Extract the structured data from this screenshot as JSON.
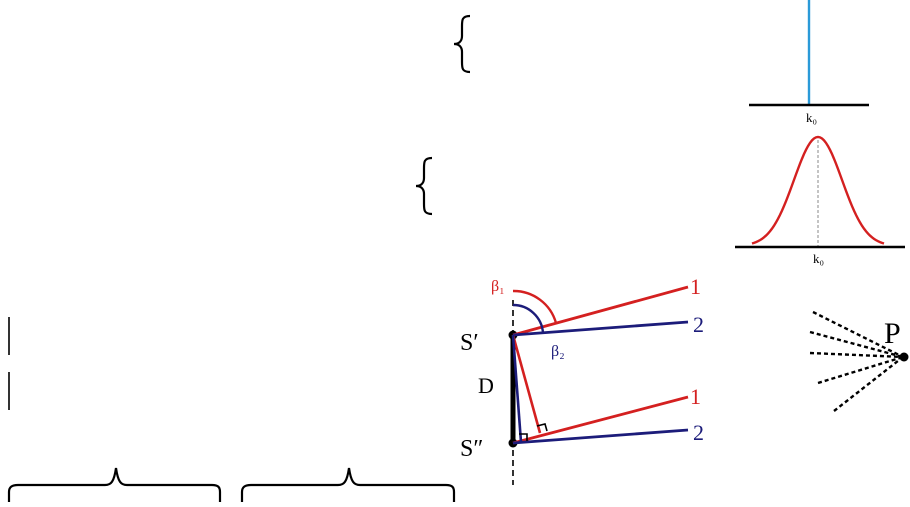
{
  "spectrum_labels": {
    "delta_peak_k": "k₀",
    "gaussian_peak_k": "k₀"
  },
  "geometry_labels": {
    "source_upper": "S′",
    "source_lower": "S″",
    "separation": "D",
    "angle_1": "β₁",
    "angle_2": "β₂",
    "ray_1_top": "1",
    "ray_2_top": "2",
    "ray_1_bottom": "1",
    "ray_2_bottom": "2"
  },
  "point_label": "P",
  "colors": {
    "red": "#d42020",
    "navy": "#1c1c7a",
    "blue": "#2a9ad8",
    "black": "#000000",
    "grey": "#888888"
  }
}
